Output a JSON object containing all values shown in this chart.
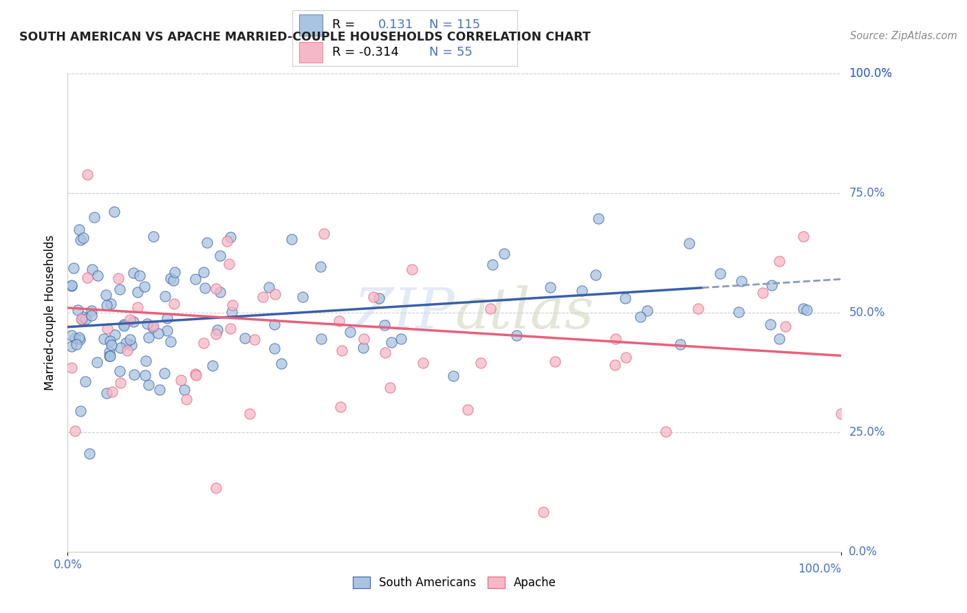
{
  "title": "SOUTH AMERICAN VS APACHE MARRIED-COUPLE HOUSEHOLDS CORRELATION CHART",
  "source": "Source: ZipAtlas.com",
  "ylabel": "Married-couple Households",
  "ytick_labels": [
    "0.0%",
    "25.0%",
    "50.0%",
    "75.0%",
    "100.0%"
  ],
  "ytick_values": [
    0,
    25,
    50,
    75,
    100
  ],
  "xlim": [
    0,
    100
  ],
  "ylim": [
    0,
    100
  ],
  "watermark": "ZIPAtlas",
  "color_blue": "#A8C4E0",
  "color_pink": "#F4B8C8",
  "color_blue_line": "#3A5FA8",
  "color_pink_line": "#E8607A",
  "color_blue_text": "#4472C4",
  "color_axis_text": "#4472C4",
  "color_grid": "#CCCCCC",
  "legend_box_color": "#F5F5F5",
  "sa_r": 0.131,
  "sa_n": 115,
  "ap_r": -0.314,
  "ap_n": 55,
  "sa_line_x0": 0,
  "sa_line_y0": 47.0,
  "sa_line_x1": 100,
  "sa_line_y1": 57.0,
  "sa_dash_x0": 82,
  "sa_dash_x1": 100,
  "ap_line_x0": 0,
  "ap_line_y0": 51.0,
  "ap_line_x1": 100,
  "ap_line_y1": 41.0
}
